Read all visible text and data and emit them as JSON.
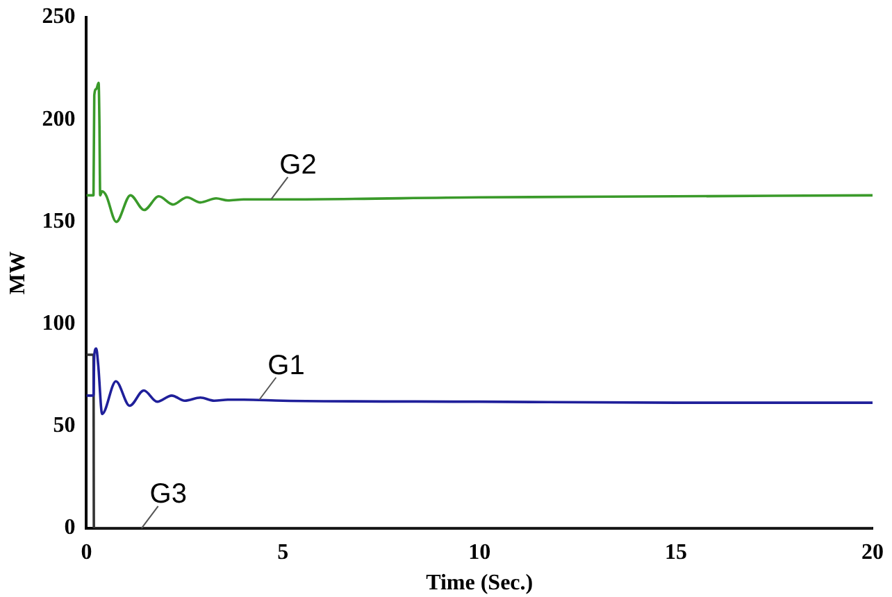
{
  "chart_data": {
    "type": "line",
    "xlabel": "Time (Sec.)",
    "ylabel": "MW",
    "xlim": [
      0,
      20
    ],
    "ylim": [
      0,
      250
    ],
    "xticks": [
      0,
      5,
      10,
      15,
      20
    ],
    "yticks": [
      0,
      50,
      100,
      150,
      200,
      250
    ],
    "grid": false,
    "legend": false,
    "marker": "none",
    "line_style": "solid",
    "series": [
      {
        "color": "#3a9a2a",
        "x": [
          0,
          0.18,
          0.2,
          0.25,
          0.31,
          0.33,
          0.35,
          0.4,
          0.5,
          0.76,
          1.12,
          1.47,
          1.84,
          2.2,
          2.56,
          2.9,
          3.3,
          3.6,
          4,
          5,
          10,
          15,
          20
        ],
        "values": [
          163,
          163,
          212,
          215,
          218,
          200,
          163,
          165,
          163,
          150,
          163,
          155.8,
          162.5,
          158.5,
          162,
          159.5,
          161.5,
          160.5,
          161,
          161,
          162,
          162.5,
          163
        ]
      },
      {
        "color": "#1f1f9a",
        "x": [
          0,
          0.18,
          0.2,
          0.25,
          0.3,
          0.4,
          0.75,
          1.1,
          1.46,
          1.8,
          2.17,
          2.5,
          2.9,
          3.25,
          3.6,
          4,
          5,
          10,
          15,
          20
        ],
        "values": [
          65,
          65,
          85,
          88,
          80,
          56,
          72,
          60,
          67.5,
          62,
          65,
          62.5,
          64,
          62.5,
          63,
          63,
          62.5,
          62,
          61.5,
          61.5
        ]
      },
      {
        "color": "#333333",
        "x": [
          0,
          0.18,
          0.19,
          20
        ],
        "values": [
          85,
          85,
          0,
          0
        ]
      }
    ],
    "annotations": [
      {
        "text": "G2",
        "x": 4.7,
        "y": 161
      },
      {
        "text": "G1",
        "x": 4.4,
        "y": 63
      },
      {
        "text": "G3",
        "x": 1.4,
        "y": 0
      }
    ]
  }
}
